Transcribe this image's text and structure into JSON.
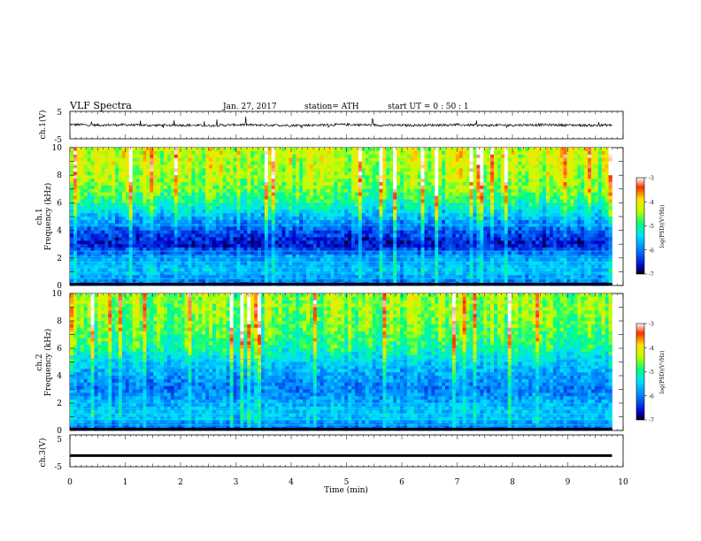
{
  "header": {
    "title": "VLF  Spectra",
    "date": "Jan. 27, 2017",
    "station": "station= ATH",
    "start": "start  UT  =    0  : 50 : 1"
  },
  "chart_data": [
    {
      "type": "line",
      "panel": "ch1-waveform",
      "ylabel": "ch.1(V)",
      "ylim": [
        -5,
        5
      ],
      "y_ticks": [
        "5",
        "-5"
      ],
      "xlim": [
        0,
        10
      ],
      "x": [
        0.0,
        0.5,
        1.0,
        1.5,
        2.0,
        2.5,
        3.0,
        3.5,
        4.0,
        4.5,
        5.0,
        5.5,
        6.0,
        6.5,
        7.0,
        7.5,
        8.0,
        8.5,
        9.0,
        9.5,
        9.8
      ],
      "values": [
        0.2,
        0.0,
        0.1,
        -0.1,
        0.0,
        -0.2,
        0.1,
        0.0,
        -0.1,
        0.0,
        0.2,
        0.0,
        -0.1,
        0.0,
        0.1,
        -0.1,
        0.0,
        0.1,
        0.0,
        -0.1,
        0.0
      ]
    },
    {
      "type": "heatmap",
      "panel": "ch1-spectrogram",
      "ylabel_channel": "ch.1",
      "ylabel": "Frequency  (kHz)",
      "ylim": [
        0,
        10
      ],
      "y_ticks": [
        "0",
        "2",
        "4",
        "6",
        "8",
        "10"
      ],
      "xlim": [
        0,
        9.8
      ],
      "colorbar": {
        "label": "log(PSD)(V²/Hz)",
        "range": [
          -7,
          -3
        ],
        "ticks": [
          "-3",
          "-4",
          "-5",
          "-6",
          "-7"
        ],
        "colors": [
          "#000000",
          "#0000cc",
          "#0080ff",
          "#00e0ff",
          "#00ff80",
          "#c0ff00",
          "#ffe000",
          "#ff3000",
          "#ffffff"
        ]
      },
      "level_by_frequency_khz": {
        "freq": [
          0,
          1,
          2,
          3,
          4,
          5,
          6,
          7,
          8,
          9,
          10
        ],
        "log_psd": [
          -6.2,
          -5.6,
          -5.8,
          -6.6,
          -6.2,
          -5.6,
          -5.0,
          -4.6,
          -4.4,
          -4.3,
          -4.3
        ]
      }
    },
    {
      "type": "heatmap",
      "panel": "ch2-spectrogram",
      "ylabel_channel": "ch.2",
      "ylabel": "Frequency  (kHz)",
      "ylim": [
        0,
        10
      ],
      "y_ticks": [
        "0",
        "2",
        "4",
        "6",
        "8",
        "10"
      ],
      "xlim": [
        0,
        9.8
      ],
      "colorbar": {
        "label": "log(PSD)(V²/Hz)",
        "range": [
          -7,
          -3
        ],
        "ticks": [
          "-3",
          "-4",
          "-5",
          "-6",
          "-7"
        ],
        "colors": [
          "#000000",
          "#0000cc",
          "#0080ff",
          "#00e0ff",
          "#00ff80",
          "#c0ff00",
          "#ffe000",
          "#ff3000",
          "#ffffff"
        ]
      },
      "level_by_frequency_khz": {
        "freq": [
          0,
          1,
          2,
          3,
          4,
          5,
          6,
          7,
          8,
          9,
          10
        ],
        "log_psd": [
          -6.3,
          -5.5,
          -5.7,
          -6.0,
          -5.8,
          -5.5,
          -5.0,
          -4.8,
          -4.6,
          -4.5,
          -4.5
        ]
      }
    },
    {
      "type": "line",
      "panel": "ch3-waveform",
      "ylabel": "ch.3(V)",
      "ylim": [
        -5,
        5
      ],
      "y_ticks": [
        "5",
        "-5"
      ],
      "xlim": [
        0,
        10
      ],
      "x": [
        0.0,
        9.8
      ],
      "values": [
        -1.5,
        -1.5
      ]
    }
  ],
  "x_axis": {
    "label": "Time  (min)",
    "ticks": [
      "0",
      "1",
      "2",
      "3",
      "4",
      "5",
      "6",
      "7",
      "8",
      "9",
      "10"
    ]
  }
}
